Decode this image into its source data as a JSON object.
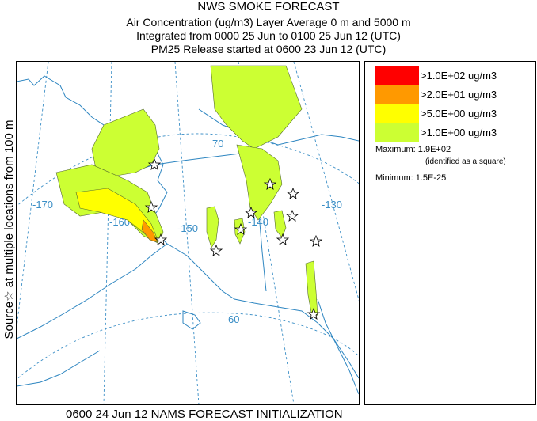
{
  "header": {
    "title": "NWS SMOKE FORECAST",
    "line2": "Air Concentration (ug/m3) Layer Average    0 m and  5000 m",
    "line3": "Integrated from 0000 25 Jun to 0100 25 Jun 12 (UTC)",
    "line4": "PM25 Release started at 0600 23 Jun 12 (UTC)"
  },
  "side_label": "Source☆  at multiple locations  from  100 m",
  "legend": {
    "items": [
      {
        "label": ">1.0E+02 ug/m3",
        "color": "#ff0000"
      },
      {
        "label": ">2.0E+01 ug/m3",
        "color": "#ff9900"
      },
      {
        "label": ">5.0E+00 ug/m3",
        "color": "#ffff00"
      },
      {
        "label": ">1.0E+00 ug/m3",
        "color": "#ccff33"
      }
    ],
    "maximum": "Maximum: 1.9E+02",
    "max_note": "(identified as a square)",
    "minimum": "Minimum: 1.5E-25"
  },
  "map": {
    "longitude_labels": [
      "-170",
      "-160",
      "-150",
      "-140",
      "-130"
    ],
    "latitude_labels": [
      "70",
      "60"
    ],
    "colors": {
      "grid": "#3a8ec6",
      "coast": "#2e86c1",
      "smoke_light": "#ccff33",
      "smoke_mid": "#ffff00",
      "smoke_orange": "#ff9900"
    }
  },
  "footer": "0600 24 Jun 12 NAMS FORECAST INITIALIZATION"
}
